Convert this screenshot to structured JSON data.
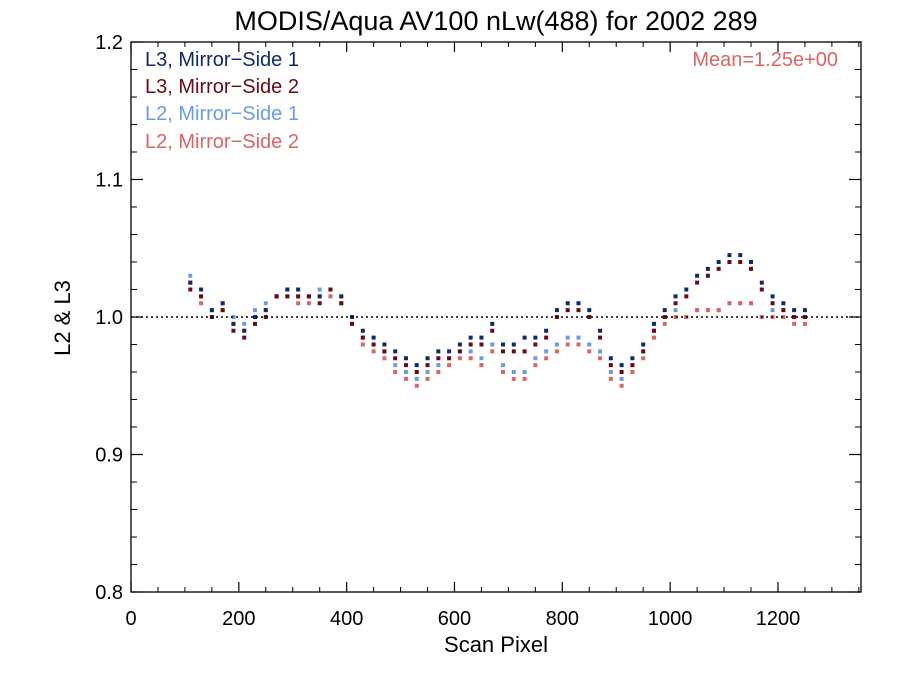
{
  "chart_data": {
    "type": "scatter",
    "title": "MODIS/Aqua AV100 nLw(488) for 2002 289",
    "xlabel": "Scan Pixel",
    "ylabel": "L2 & L3",
    "xlim": [
      0,
      1354
    ],
    "ylim": [
      0.8,
      1.2
    ],
    "x_ticks": [
      0,
      200,
      400,
      600,
      800,
      1000,
      1200
    ],
    "y_ticks": [
      0.8,
      0.9,
      1.0,
      1.1,
      1.2
    ],
    "x_tick_labels": [
      "0",
      "200",
      "400",
      "600",
      "800",
      "1000",
      "1200"
    ],
    "y_tick_labels": [
      "0.8",
      "0.9",
      "1.0",
      "1.1",
      "1.2"
    ],
    "reference_line": 1.0,
    "annotation": "Mean=1.25e+00",
    "legend_position": "top-left",
    "series": [
      {
        "name": "L3, Mirror−Side 1",
        "color": "#0d2a6e",
        "x": [
          110,
          130,
          150,
          170,
          190,
          210,
          230,
          250,
          270,
          290,
          310,
          330,
          350,
          370,
          390,
          410,
          430,
          450,
          470,
          490,
          510,
          530,
          550,
          570,
          590,
          610,
          630,
          650,
          670,
          690,
          710,
          730,
          750,
          770,
          790,
          810,
          830,
          850,
          870,
          890,
          910,
          930,
          950,
          970,
          990,
          1010,
          1030,
          1050,
          1070,
          1090,
          1110,
          1130,
          1150,
          1170,
          1190,
          1210,
          1230,
          1250
        ],
        "y": [
          1.025,
          1.02,
          1.005,
          1.01,
          0.995,
          0.99,
          1.0,
          1.005,
          1.015,
          1.02,
          1.02,
          1.015,
          1.015,
          1.02,
          1.015,
          1.0,
          0.99,
          0.985,
          0.98,
          0.975,
          0.97,
          0.965,
          0.97,
          0.975,
          0.975,
          0.98,
          0.985,
          0.985,
          0.995,
          0.98,
          0.98,
          0.985,
          0.985,
          0.99,
          1.005,
          1.01,
          1.01,
          1.005,
          0.99,
          0.97,
          0.965,
          0.97,
          0.98,
          0.995,
          1.005,
          1.015,
          1.02,
          1.03,
          1.035,
          1.04,
          1.045,
          1.045,
          1.04,
          1.025,
          1.015,
          1.01,
          1.005,
          1.005
        ]
      },
      {
        "name": "L3, Mirror−Side 2",
        "color": "#6b0a14",
        "x": [
          110,
          130,
          150,
          170,
          190,
          210,
          230,
          250,
          270,
          290,
          310,
          330,
          350,
          370,
          390,
          410,
          430,
          450,
          470,
          490,
          510,
          530,
          550,
          570,
          590,
          610,
          630,
          650,
          670,
          690,
          710,
          730,
          750,
          770,
          790,
          810,
          830,
          850,
          870,
          890,
          910,
          930,
          950,
          970,
          990,
          1010,
          1030,
          1050,
          1070,
          1090,
          1110,
          1130,
          1150,
          1170,
          1190,
          1210,
          1230,
          1250
        ],
        "y": [
          1.02,
          1.015,
          1.0,
          1.005,
          0.99,
          0.985,
          0.995,
          1.0,
          1.015,
          1.015,
          1.015,
          1.015,
          1.01,
          1.02,
          1.01,
          0.995,
          0.985,
          0.98,
          0.975,
          0.97,
          0.965,
          0.96,
          0.965,
          0.97,
          0.97,
          0.975,
          0.98,
          0.98,
          0.99,
          0.975,
          0.975,
          0.975,
          0.98,
          0.985,
          1.0,
          1.005,
          1.005,
          1.0,
          0.985,
          0.965,
          0.96,
          0.965,
          0.975,
          0.99,
          1.0,
          1.01,
          1.015,
          1.025,
          1.03,
          1.035,
          1.04,
          1.04,
          1.035,
          1.02,
          1.01,
          1.005,
          1.0,
          1.0
        ]
      },
      {
        "name": "L2, Mirror−Side 1",
        "color": "#6b9ae8",
        "x": [
          110,
          130,
          150,
          170,
          190,
          210,
          230,
          250,
          270,
          290,
          310,
          330,
          350,
          370,
          390,
          410,
          430,
          450,
          470,
          490,
          510,
          530,
          550,
          570,
          590,
          610,
          630,
          650,
          670,
          690,
          710,
          730,
          750,
          770,
          790,
          810,
          830,
          850,
          870,
          890,
          910,
          930,
          950,
          970,
          990,
          1010,
          1030,
          1050,
          1070,
          1090,
          1110,
          1130,
          1150,
          1170,
          1190,
          1210,
          1230,
          1250
        ],
        "y": [
          1.03,
          1.015,
          1.005,
          1.01,
          1.0,
          0.995,
          1.005,
          1.01,
          1.015,
          1.02,
          1.015,
          1.015,
          1.02,
          1.02,
          1.015,
          1.0,
          0.985,
          0.98,
          0.975,
          0.965,
          0.96,
          0.955,
          0.96,
          0.965,
          0.97,
          0.975,
          0.975,
          0.97,
          0.98,
          0.965,
          0.96,
          0.96,
          0.97,
          0.975,
          0.98,
          0.985,
          0.985,
          0.98,
          0.975,
          0.96,
          0.955,
          0.965,
          0.975,
          0.99,
          1.0,
          1.005,
          1.0,
          1.005,
          1.005,
          1.005,
          1.01,
          1.01,
          1.01,
          1.0,
          1.005,
          1.005,
          1.0,
          1.0
        ]
      },
      {
        "name": "L2, Mirror−Side 2",
        "color": "#d96565",
        "x": [
          110,
          130,
          150,
          170,
          190,
          210,
          230,
          250,
          270,
          290,
          310,
          330,
          350,
          370,
          390,
          410,
          430,
          450,
          470,
          490,
          510,
          530,
          550,
          570,
          590,
          610,
          630,
          650,
          670,
          690,
          710,
          730,
          750,
          770,
          790,
          810,
          830,
          850,
          870,
          890,
          910,
          930,
          950,
          970,
          990,
          1010,
          1030,
          1050,
          1070,
          1090,
          1110,
          1130,
          1150,
          1170,
          1190,
          1210,
          1230,
          1250
        ],
        "y": [
          1.025,
          1.01,
          1.0,
          1.005,
          0.995,
          0.99,
          1.0,
          1.005,
          1.015,
          1.015,
          1.01,
          1.01,
          1.015,
          1.015,
          1.01,
          0.995,
          0.98,
          0.975,
          0.97,
          0.96,
          0.955,
          0.95,
          0.955,
          0.96,
          0.965,
          0.97,
          0.97,
          0.965,
          0.975,
          0.96,
          0.955,
          0.955,
          0.965,
          0.97,
          0.975,
          0.98,
          0.98,
          0.975,
          0.97,
          0.955,
          0.95,
          0.96,
          0.97,
          0.985,
          0.995,
          1.0,
          1.0,
          1.005,
          1.005,
          1.005,
          1.01,
          1.01,
          1.01,
          1.0,
          1.0,
          1.0,
          0.995,
          0.995
        ]
      }
    ]
  }
}
